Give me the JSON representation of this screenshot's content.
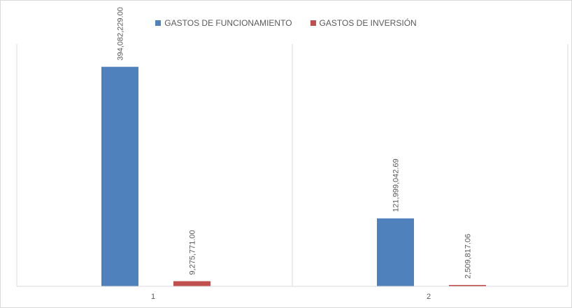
{
  "chart_data": {
    "type": "bar",
    "title": "",
    "xlabel": "",
    "ylabel": "",
    "categories": [
      "1",
      "2"
    ],
    "series": [
      {
        "name": "GASTOS DE FUNCIONAMIENTO",
        "color": "#4f81bd",
        "values": [
          394082229.0,
          121999042.69
        ],
        "labels": [
          "394,082,229.00",
          "121,999,042.69"
        ]
      },
      {
        "name": "GASTOS DE INVERSIÓN",
        "color": "#c0504d",
        "values": [
          9275771.0,
          2509817.06
        ],
        "labels": [
          "9,275,771.00",
          "2,509,817.06"
        ]
      }
    ],
    "ylim": [
      0,
      435000000
    ],
    "legend_position": "top",
    "gridlines": false,
    "category_separators": true
  }
}
